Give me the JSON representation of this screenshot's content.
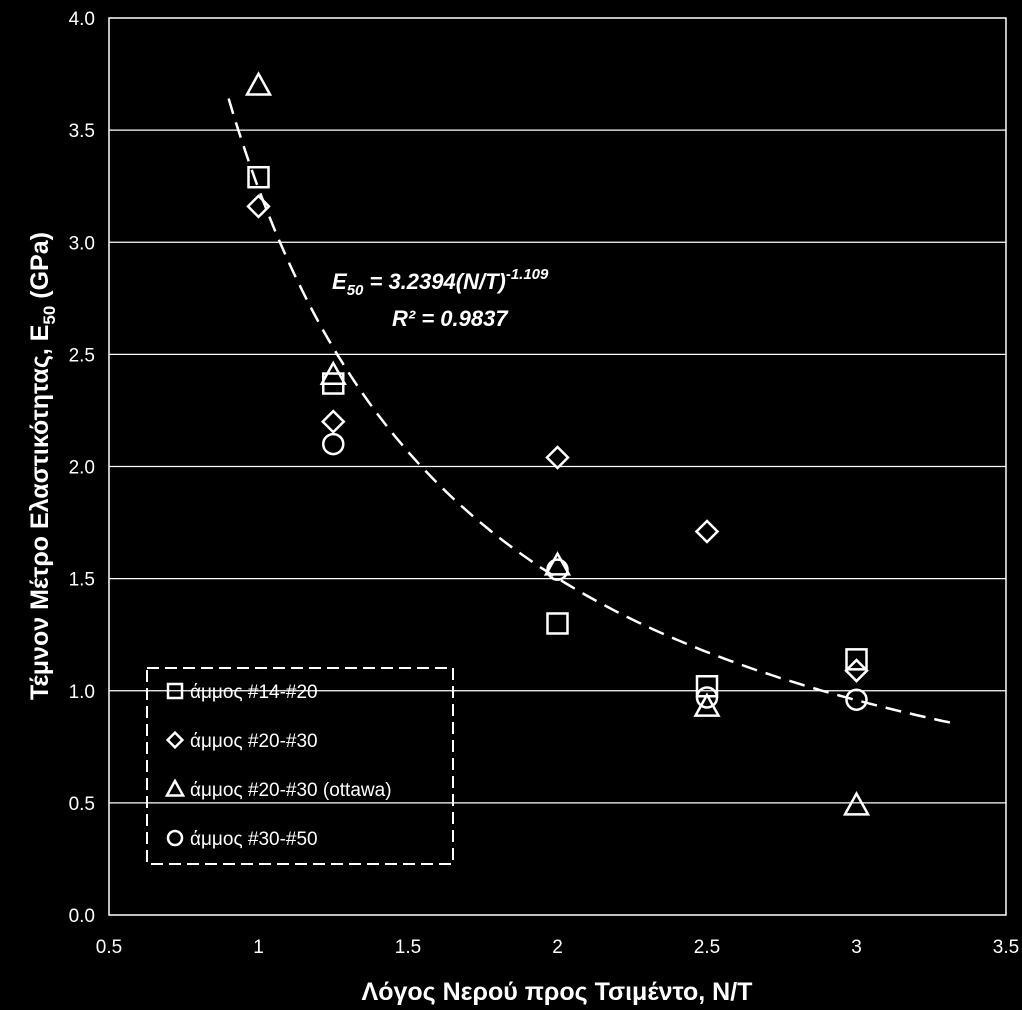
{
  "chart_data": {
    "type": "scatter",
    "xlabel": "Λόγος  Νερού  προς  Τσιμέντο, Ν/Τ",
    "ylabel": "Τέμνον  Μέτρο  Ελαστικότητας,  E",
    "ylabel_sub": "50",
    "ylabel_unit": "  (GPa)",
    "xlim": [
      0.5,
      3.5
    ],
    "ylim": [
      0.0,
      4.0
    ],
    "x_ticks": [
      "0.5",
      "1",
      "1.5",
      "2",
      "2.5",
      "3",
      "3.5"
    ],
    "y_ticks": [
      "0.0",
      "0.5",
      "1.0",
      "1.5",
      "2.0",
      "2.5",
      "3.0",
      "3.5",
      "4.0"
    ],
    "grid": "horizontal",
    "legend_position": "bottom-left",
    "series": [
      {
        "name": "άμμος #14-#20",
        "marker": "square",
        "x": [
          1,
          1.25,
          2,
          2.5,
          3
        ],
        "y": [
          3.29,
          2.37,
          1.3,
          1.02,
          1.14
        ]
      },
      {
        "name": "άμμος #20-#30",
        "marker": "diamond",
        "x": [
          1,
          1.25,
          2,
          2.5,
          3
        ],
        "y": [
          3.16,
          2.2,
          2.04,
          1.71,
          1.09
        ]
      },
      {
        "name": "άμμος #20-#30 (ottawa)",
        "marker": "triangle",
        "x": [
          1,
          1.25,
          2,
          2.5,
          3
        ],
        "y": [
          3.7,
          2.41,
          1.56,
          0.93,
          0.49
        ]
      },
      {
        "name": "άμμος #30-#50",
        "marker": "circle",
        "x": [
          1.25,
          2,
          2.5,
          3
        ],
        "y": [
          2.1,
          1.54,
          0.97,
          0.96
        ]
      }
    ],
    "trendline": {
      "coef": 3.2394,
      "exp": -1.109,
      "x_range": [
        0.9,
        3.32
      ],
      "style": "dashed",
      "eq_lhs": "E",
      "eq_sub": "50",
      "eq_mid": " = 3.2394(Ν/Τ)",
      "eq_sup": "-1.109",
      "r2_text": "R² = 0.9837"
    }
  }
}
